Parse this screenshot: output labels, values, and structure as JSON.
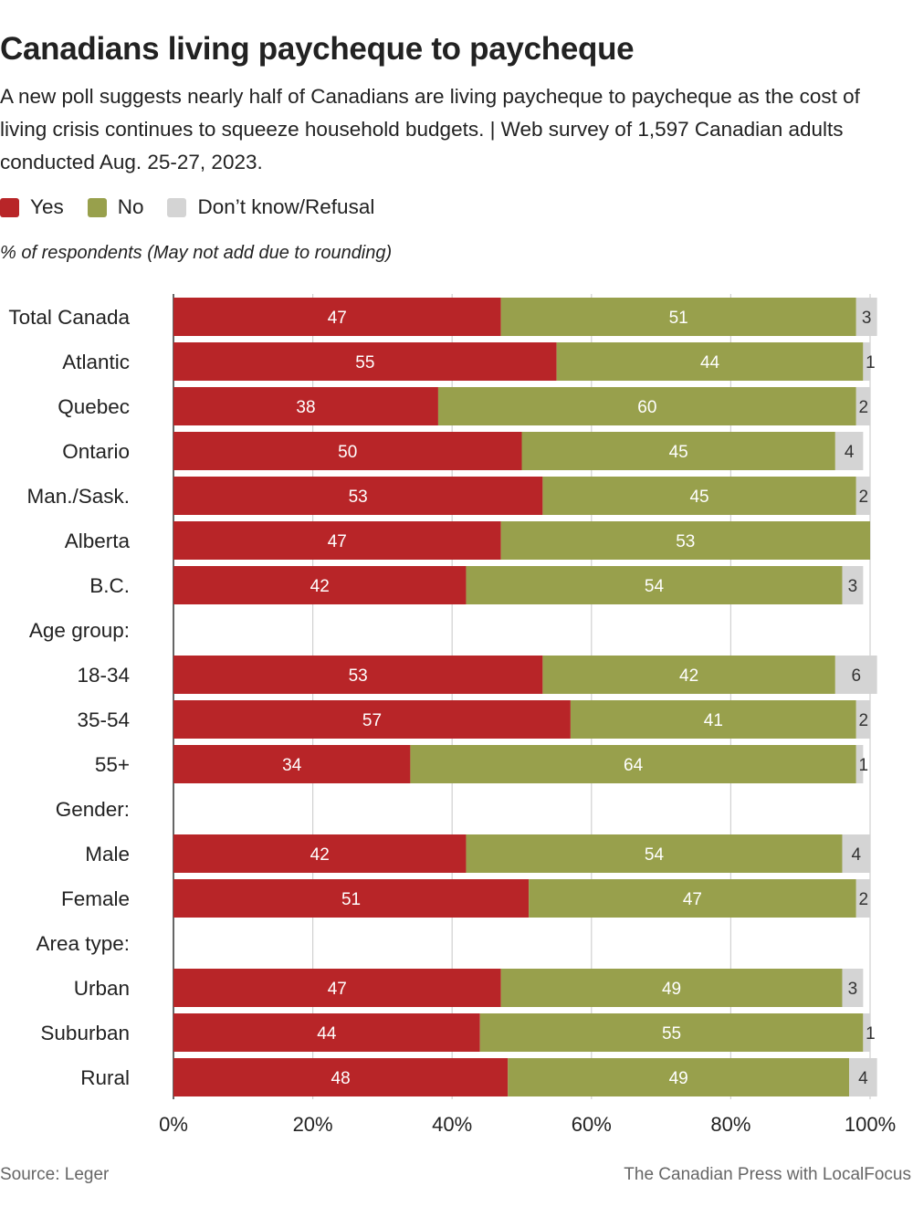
{
  "header": {
    "title": "Canadians living paycheque to paycheque",
    "subtitle": "A new poll suggests nearly half of Canadians are living paycheque to paycheque as the cost of living crisis continues to squeeze household budgets. | Web survey of 1,597 Canadian adults conducted Aug. 25-27, 2023.",
    "note": "% of respondents (May not add due to rounding)"
  },
  "legend": [
    {
      "label": "Yes",
      "color": "#b82528"
    },
    {
      "label": "No",
      "color": "#98a04c"
    },
    {
      "label": "Don’t know/Refusal",
      "color": "#d4d4d4"
    }
  ],
  "footer": {
    "source": "Source:  Leger",
    "credit": "The Canadian Press with LocalFocus"
  },
  "chart_data": {
    "type": "bar",
    "orientation": "horizontal",
    "stacked": true,
    "xlim": [
      0,
      100
    ],
    "x_ticks": [
      "0%",
      "20%",
      "40%",
      "60%",
      "80%",
      "100%"
    ],
    "grid": true,
    "categories": [
      "Total Canada",
      "Atlantic",
      "Quebec",
      "Ontario",
      "Man./Sask.",
      "Alberta",
      "B.C.",
      "Age group:",
      "18-34",
      "35-54",
      "55+",
      "Gender:",
      "Male",
      "Female",
      "Area type:",
      "Urban",
      "Suburban",
      "Rural"
    ],
    "series": [
      {
        "name": "Yes",
        "color": "#b82528",
        "values": [
          47,
          55,
          38,
          50,
          53,
          47,
          42,
          null,
          53,
          57,
          34,
          null,
          42,
          51,
          null,
          47,
          44,
          48
        ]
      },
      {
        "name": "No",
        "color": "#98a04c",
        "values": [
          51,
          44,
          60,
          45,
          45,
          53,
          54,
          null,
          42,
          41,
          64,
          null,
          54,
          47,
          null,
          49,
          55,
          49
        ]
      },
      {
        "name": "Don’t know/Refusal",
        "color": "#d4d4d4",
        "values": [
          3,
          1,
          2,
          4,
          2,
          null,
          3,
          null,
          6,
          2,
          1,
          null,
          4,
          2,
          null,
          3,
          1,
          4
        ]
      }
    ]
  }
}
